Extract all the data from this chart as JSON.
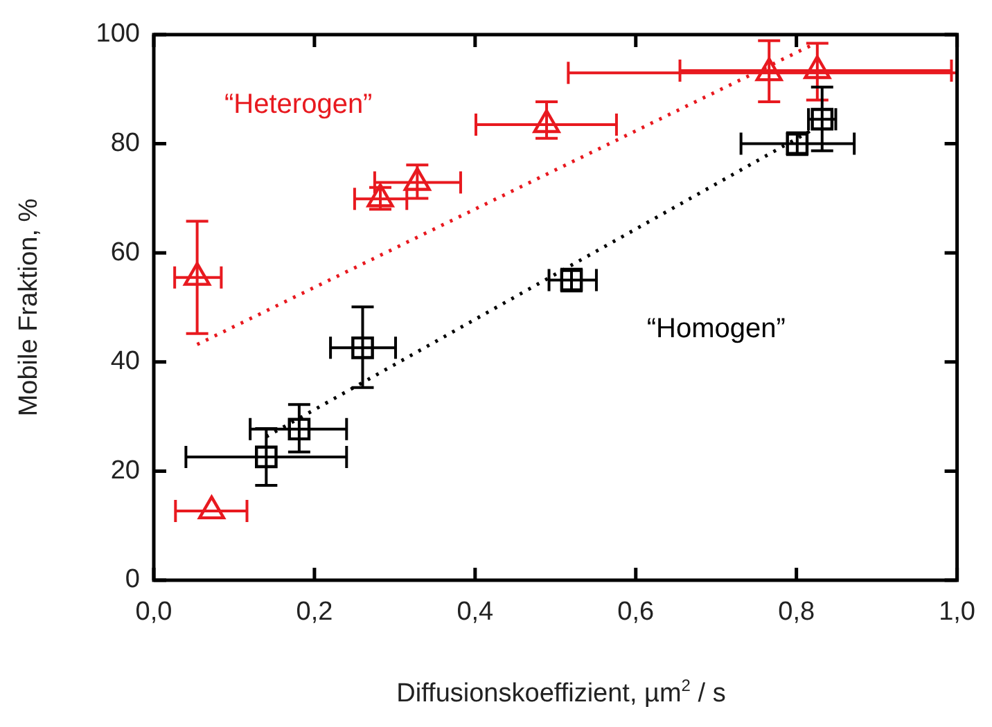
{
  "chart_data": {
    "type": "scatter",
    "xlabel": "Diffusionskoeffizient, µm$^{2}$ / s",
    "ylabel": "Mobile Fraktion, %",
    "xlim": [
      0,
      1
    ],
    "xticks": [
      {
        "value": 0,
        "label": "0,0"
      },
      {
        "value": 0.2,
        "label": "0,2"
      },
      {
        "value": 0.4,
        "label": "0,4"
      },
      {
        "value": 0.6,
        "label": "0,6"
      },
      {
        "value": 0.8,
        "label": "0,8"
      },
      {
        "value": 1,
        "label": "1,0"
      }
    ],
    "ylim": [
      0,
      100
    ],
    "yticks": [
      0,
      20,
      40,
      60,
      80,
      100
    ],
    "grid": false,
    "legend": false,
    "series": [
      {
        "name": "“Heterogen”",
        "color": "#e8191f",
        "marker": "triangle",
        "x": [
          0.054,
          0.282,
          0.328,
          0.072,
          0.489,
          0.766,
          0.826
        ],
        "values": [
          55.5,
          69.9,
          72.9,
          12.7,
          83.5,
          93,
          93.4
        ],
        "errors": [
          [
            45.2,
            65.8
          ],
          [
            68,
            72
          ],
          [
            70,
            76.1
          ],
          null,
          [
            81,
            87.7
          ],
          [
            87.7,
            98.9
          ],
          [
            88,
            98.4
          ]
        ],
        "xerrors": [
          [
            0.026,
            0.084
          ],
          [
            0.25,
            0.315
          ],
          [
            0.275,
            0.382
          ],
          [
            0.027,
            0.116
          ],
          [
            0.401,
            0.576
          ],
          [
            0.516,
            1
          ],
          [
            0.655,
            0.993
          ]
        ]
      },
      {
        "name": "“Homogen”",
        "color": "#000000",
        "marker": "square",
        "x": [
          0.14,
          0.181,
          0.26,
          0.52,
          0.801,
          0.832
        ],
        "values": [
          22.6,
          27.7,
          42.6,
          55,
          80,
          84.5
        ],
        "errors": [
          [
            17.4,
            27.8
          ],
          [
            23.5,
            32.2
          ],
          [
            35.3,
            50.1
          ],
          [
            53,
            57
          ],
          [
            78,
            82
          ],
          [
            78.7,
            90.4
          ]
        ],
        "xerrors": [
          [
            0.04,
            0.24
          ],
          [
            0.12,
            0.24
          ],
          [
            0.22,
            0.301
          ],
          [
            0.492,
            0.551
          ],
          [
            0.731,
            0.872
          ],
          [
            0.815,
            0.849
          ]
        ]
      },
      {
        "type": "line",
        "color": "#e8191f",
        "line_style": "dotted",
        "marker": "none",
        "x": [
          0.054,
          0.818
        ],
        "values": [
          43.2,
          98
        ]
      },
      {
        "type": "line",
        "color": "#000000",
        "line_style": "dotted",
        "marker": "none",
        "x": [
          0.14,
          0.818
        ],
        "values": [
          26.3,
          82.4
        ]
      }
    ]
  }
}
